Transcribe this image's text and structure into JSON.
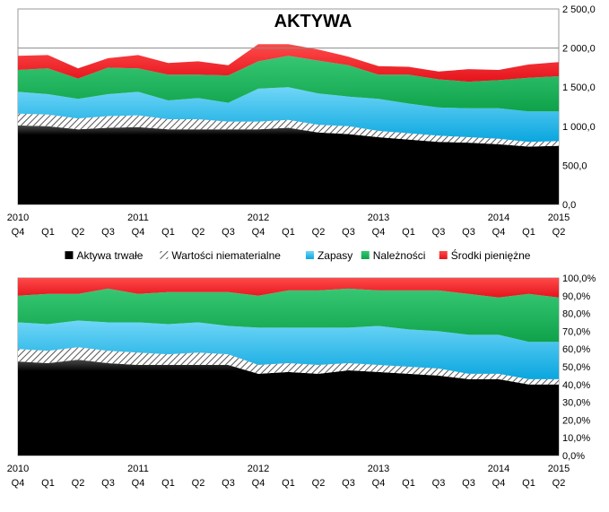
{
  "chart_data": [
    {
      "type": "area",
      "stacked": true,
      "title": "AKTYWA",
      "x": [
        "Q4",
        "Q1",
        "Q2",
        "Q3",
        "Q4",
        "Q1",
        "Q2",
        "Q3",
        "Q4",
        "Q1",
        "Q2",
        "Q3",
        "Q4",
        "Q1",
        "Q3",
        "Q3",
        "Q4",
        "Q1",
        "Q2"
      ],
      "x_year_labels": [
        "2010",
        "",
        "",
        "",
        "2011",
        "",
        "",
        "",
        "2012",
        "",
        "",
        "",
        "2013",
        "",
        "",
        "",
        "2014",
        "",
        "2015"
      ],
      "series": [
        {
          "name": "Aktywa trwałe",
          "color": "#000000",
          "values": [
            1010,
            1000,
            960,
            980,
            990,
            960,
            960,
            960,
            960,
            980,
            920,
            900,
            860,
            830,
            800,
            790,
            770,
            740,
            750
          ]
        },
        {
          "name": "Wartości niematerialne",
          "color": "#b5b5b5",
          "pattern": "hatch",
          "values": [
            150,
            150,
            140,
            150,
            150,
            130,
            130,
            100,
            100,
            100,
            100,
            100,
            80,
            80,
            80,
            70,
            70,
            60,
            60
          ]
        },
        {
          "name": "Zapasy",
          "color": "#1ab6ea",
          "values": [
            280,
            260,
            250,
            280,
            300,
            240,
            270,
            240,
            420,
            420,
            400,
            380,
            410,
            380,
            360,
            370,
            390,
            390,
            380
          ]
        },
        {
          "name": "Należności",
          "color": "#19b35a",
          "values": [
            280,
            330,
            260,
            340,
            300,
            330,
            300,
            350,
            350,
            400,
            420,
            400,
            310,
            370,
            360,
            340,
            360,
            430,
            450
          ]
        },
        {
          "name": "Środki pieniężne",
          "color": "#ee1c24",
          "values": [
            180,
            170,
            130,
            120,
            170,
            150,
            170,
            130,
            220,
            150,
            140,
            110,
            110,
            100,
            100,
            160,
            130,
            170,
            180
          ]
        }
      ],
      "ylim": [
        0,
        2500
      ],
      "y_ticks": [
        "0,0",
        "500,0",
        "1 000,0",
        "1 500,0",
        "2 000,0",
        "2 500,0"
      ],
      "y_tick_values": [
        0,
        500,
        1000,
        1500,
        2000,
        2500
      ],
      "reference_line": 2000,
      "grid": false,
      "y_axis_side": "right"
    },
    {
      "type": "area",
      "stacked": true,
      "percent": true,
      "title": "",
      "x": [
        "Q4",
        "Q1",
        "Q2",
        "Q3",
        "Q4",
        "Q1",
        "Q2",
        "Q3",
        "Q4",
        "Q1",
        "Q2",
        "Q3",
        "Q4",
        "Q1",
        "Q3",
        "Q3",
        "Q4",
        "Q1",
        "Q2"
      ],
      "x_year_labels": [
        "2010",
        "",
        "",
        "",
        "2011",
        "",
        "",
        "",
        "2012",
        "",
        "",
        "",
        "2013",
        "",
        "",
        "",
        "2014",
        "",
        "2015"
      ],
      "series": [
        {
          "name": "Aktywa trwałe",
          "color": "#000000",
          "values": [
            53,
            52,
            54,
            52,
            51,
            51,
            51,
            51,
            46,
            47,
            46,
            48,
            47,
            46,
            45,
            43,
            43,
            40,
            40
          ]
        },
        {
          "name": "Wartości niematerialne",
          "color": "#b5b5b5",
          "pattern": "hatch",
          "values": [
            7,
            7,
            7,
            7,
            7,
            6,
            7,
            6,
            5,
            5,
            5,
            4,
            4,
            4,
            4,
            3,
            3,
            3,
            3
          ]
        },
        {
          "name": "Zapasy",
          "color": "#1ab6ea",
          "values": [
            15,
            15,
            15,
            16,
            17,
            17,
            17,
            16,
            21,
            20,
            21,
            20,
            22,
            21,
            21,
            22,
            22,
            21,
            21
          ]
        },
        {
          "name": "Należności",
          "color": "#19b35a",
          "values": [
            15,
            17,
            15,
            19,
            16,
            18,
            17,
            19,
            18,
            21,
            21,
            22,
            20,
            22,
            23,
            23,
            21,
            27,
            25
          ]
        },
        {
          "name": "Środki pieniężne",
          "color": "#ee1c24",
          "values": [
            10,
            9,
            9,
            6,
            9,
            8,
            8,
            8,
            10,
            7,
            7,
            6,
            7,
            7,
            7,
            9,
            11,
            9,
            11
          ]
        }
      ],
      "ylim": [
        0,
        100
      ],
      "y_ticks": [
        "0,0%",
        "10,0%",
        "20,0%",
        "30,0%",
        "40,0%",
        "50,0%",
        "60,0%",
        "70,0%",
        "80,0%",
        "90,0%",
        "100,0%"
      ],
      "y_tick_values": [
        0,
        10,
        20,
        30,
        40,
        50,
        60,
        70,
        80,
        90,
        100
      ],
      "grid": false,
      "y_axis_side": "right"
    }
  ],
  "legend": {
    "placement": "between-charts",
    "items": [
      {
        "name": "Aktywa trwałe",
        "color": "#000000"
      },
      {
        "name": "Wartości niematerialne",
        "color": "#b5b5b5",
        "pattern": "hatch"
      },
      {
        "name": "Zapasy",
        "color": "#1ab6ea"
      },
      {
        "name": "Należności",
        "color": "#19b35a"
      },
      {
        "name": "Środki pieniężne",
        "color": "#ee1c24"
      }
    ]
  }
}
